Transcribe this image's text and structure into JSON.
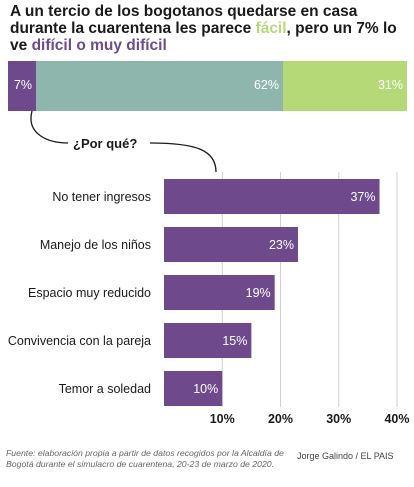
{
  "title": {
    "part1": "A un tercio de los bogotanos quedarse en casa durante la cuarentena les parece ",
    "easy": "fácil",
    "part2": ", pero un 7% lo ve ",
    "hard": "difícil o muy difícil"
  },
  "why_label": "¿Por qué?",
  "source": "Fuente: elaboración propia a partir de datos recogidos por la Alcaldía de Bogotá durante el simulacro de cuarentena, 20-23 de marzo de 2020.",
  "credit": "Jorge Galindo / EL PAIS",
  "colors": {
    "purple": "#6e4a8c",
    "teal": "#8fb6ad",
    "green": "#b5d977"
  },
  "chart_data": [
    {
      "type": "bar",
      "orientation": "horizontal-stacked",
      "segments": [
        {
          "value": 7,
          "label": "7%",
          "color": "#6e4a8c"
        },
        {
          "value": 62,
          "label": "62%",
          "color": "#8fb6ad"
        },
        {
          "value": 31,
          "label": "31%",
          "color": "#b5d977"
        }
      ]
    },
    {
      "type": "bar",
      "orientation": "horizontal",
      "categories": [
        "No tener ingresos",
        "Manejo de los niños",
        "Espacio muy reducido",
        "Convivencia con la pareja",
        "Temor a soledad"
      ],
      "values": [
        37,
        23,
        19,
        15,
        10
      ],
      "value_labels": [
        "37%",
        "23%",
        "19%",
        "15%",
        "10%"
      ],
      "xlim": [
        0,
        40
      ],
      "ticks": [
        10,
        20,
        30,
        40
      ],
      "tick_labels": [
        "10%",
        "20%",
        "30%",
        "40%"
      ],
      "grid": true,
      "color": "#6e4a8c"
    }
  ]
}
